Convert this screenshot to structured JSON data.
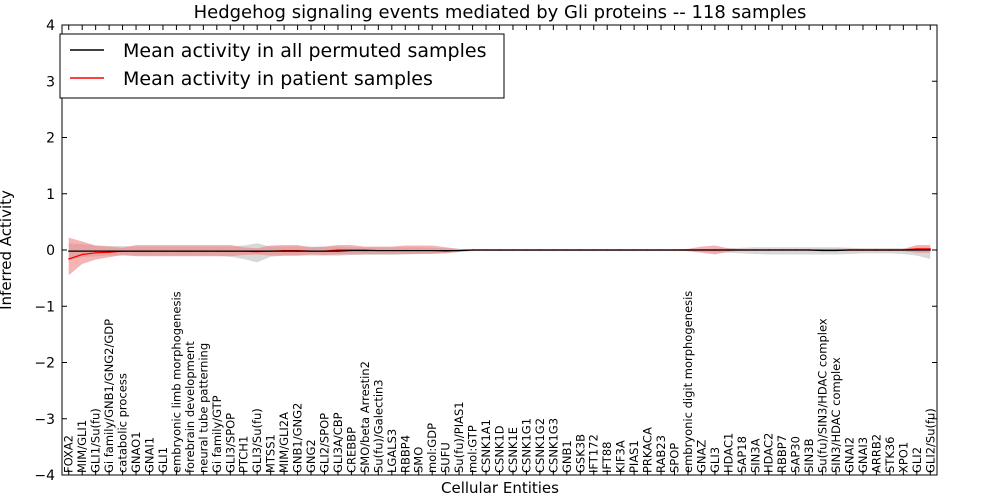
{
  "chart_data": {
    "type": "line",
    "title": "Hedgehog signaling events mediated by Gli proteins -- 118 samples",
    "xlabel": "Cellular Entities",
    "ylabel": "Inferred Activity",
    "ylim": [
      -4,
      4
    ],
    "yticks": [
      "−4",
      "−3",
      "−2",
      "−1",
      "0",
      "1",
      "2",
      "3",
      "4"
    ],
    "legend_position": "top-left",
    "grid": false,
    "categories": [
      "FOXA2",
      "MIM/GLI1",
      "GLI1/Su(fu)",
      "Gi family/GNB1/GNG2/GDP",
      "catabolic process",
      "GNAO1",
      "GNAI1",
      "GLI1",
      "embryonic limb morphogenesis",
      "forebrain development",
      "neural tube patterning",
      "Gi family/GTP",
      "GLI3/SPOP",
      "PTCH1",
      "GLI3/Su(fu)",
      "MTSS1",
      "MIM/GLI2A",
      "GNB1/GNG2",
      "GNG2",
      "GLI2/SPOP",
      "GLI3A/CBP",
      "CREBBP",
      "SMO/beta Arrestin2",
      "Su(fu)/Galectin3",
      "LGALS3",
      "RBBP4",
      "SMO",
      "mol:GDP",
      "SUFU",
      "Su(fu)/PIAS1",
      "mol:GTP",
      "CSNK1A1",
      "CSNK1D",
      "CSNK1E",
      "CSNK1G1",
      "CSNK1G2",
      "CSNK1G3",
      "GNB1",
      "GSK3B",
      "IFT172",
      "IFT88",
      "KIF3A",
      "PIAS1",
      "PRKACA",
      "RAB23",
      "SPOP",
      "embryonic digit morphogenesis",
      "GNAZ",
      "GLI3",
      "HDAC1",
      "SAP18",
      "SIN3A",
      "HDAC2",
      "RBBP7",
      "SAP30",
      "SIN3B",
      "Su(fu)/SIN3/HDAC complex",
      "SIN3/HDAC complex",
      "GNAI2",
      "GNAI3",
      "ARRB2",
      "STK36",
      "XPO1",
      "GLI2",
      "GLI2/Su(fu)"
    ],
    "series": [
      {
        "name": "Mean activity in all permuted samples",
        "color": "#000000",
        "band_color": "#c8c8c8",
        "values": [
          -0.02,
          -0.02,
          -0.02,
          -0.02,
          -0.02,
          -0.02,
          -0.02,
          -0.02,
          -0.02,
          -0.02,
          -0.02,
          -0.02,
          -0.02,
          -0.02,
          -0.02,
          -0.02,
          -0.02,
          -0.02,
          -0.02,
          -0.02,
          -0.02,
          -0.01,
          -0.01,
          -0.01,
          -0.01,
          -0.01,
          -0.01,
          -0.01,
          -0.01,
          -0.01,
          0,
          0,
          0,
          0,
          0,
          0,
          0,
          0,
          0,
          0,
          0,
          0,
          0,
          0,
          0,
          0,
          0,
          0,
          0,
          0,
          0,
          0,
          0,
          0,
          0,
          0,
          -0.01,
          -0.01,
          0,
          0,
          0,
          0,
          0,
          0,
          0
        ],
        "upper": [
          0.12,
          0.1,
          0.08,
          0.07,
          0.07,
          0.06,
          0.06,
          0.06,
          0.06,
          0.06,
          0.06,
          0.06,
          0.06,
          0.08,
          0.12,
          0.06,
          0.06,
          0.06,
          0.06,
          0.06,
          0.06,
          0.05,
          0.05,
          0.05,
          0.05,
          0.05,
          0.05,
          0.04,
          0.03,
          0.02,
          0.01,
          0.01,
          0.01,
          0.01,
          0.01,
          0.01,
          0.01,
          0.01,
          0.01,
          0.01,
          0.01,
          0.01,
          0.01,
          0.01,
          0.01,
          0.01,
          0.01,
          0.01,
          0.02,
          0.03,
          0.04,
          0.05,
          0.05,
          0.05,
          0.05,
          0.05,
          0.05,
          0.05,
          0.04,
          0.03,
          0.03,
          0.03,
          0.03,
          0.04,
          0.05
        ],
        "lower": [
          -0.18,
          -0.13,
          -0.11,
          -0.1,
          -0.1,
          -0.1,
          -0.1,
          -0.1,
          -0.1,
          -0.1,
          -0.1,
          -0.1,
          -0.12,
          -0.16,
          -0.22,
          -0.12,
          -0.1,
          -0.1,
          -0.1,
          -0.1,
          -0.1,
          -0.09,
          -0.09,
          -0.09,
          -0.09,
          -0.08,
          -0.07,
          -0.06,
          -0.05,
          -0.04,
          -0.02,
          -0.02,
          -0.02,
          -0.02,
          -0.02,
          -0.02,
          -0.02,
          -0.02,
          -0.02,
          -0.02,
          -0.02,
          -0.02,
          -0.02,
          -0.02,
          -0.02,
          -0.02,
          -0.02,
          -0.03,
          -0.04,
          -0.05,
          -0.06,
          -0.07,
          -0.08,
          -0.08,
          -0.08,
          -0.08,
          -0.08,
          -0.08,
          -0.07,
          -0.06,
          -0.06,
          -0.06,
          -0.07,
          -0.1,
          -0.16
        ]
      },
      {
        "name": "Mean activity in patient samples",
        "color": "#ff0000",
        "band_color": "#f08080",
        "values": [
          -0.16,
          -0.08,
          -0.05,
          -0.04,
          -0.02,
          -0.02,
          -0.02,
          -0.02,
          -0.02,
          -0.02,
          -0.02,
          -0.02,
          -0.02,
          -0.02,
          -0.03,
          -0.02,
          -0.01,
          -0.01,
          -0.02,
          -0.02,
          0,
          0,
          0,
          -0.01,
          -0.01,
          -0.01,
          -0.01,
          -0.01,
          -0.02,
          -0.01,
          0,
          0,
          0,
          0,
          0,
          0,
          0,
          0,
          0,
          0,
          0,
          0,
          0,
          0,
          0,
          0,
          0,
          0,
          0,
          0,
          0,
          0,
          0,
          0,
          0,
          0,
          0,
          0,
          0,
          0,
          0,
          0,
          0,
          0.02,
          0.02
        ],
        "upper": [
          0.22,
          0.15,
          0.08,
          0.06,
          0.04,
          0.09,
          0.09,
          0.09,
          0.09,
          0.09,
          0.09,
          0.09,
          0.09,
          0.05,
          0.03,
          0.08,
          0.09,
          0.09,
          0.05,
          0.06,
          0.09,
          0.09,
          0.06,
          0.06,
          0.06,
          0.08,
          0.08,
          0.08,
          0.05,
          0.02,
          0.01,
          0.01,
          0.01,
          0.01,
          0.01,
          0.01,
          0.01,
          0.01,
          0.01,
          0.01,
          0.01,
          0.01,
          0.01,
          0.01,
          0.01,
          0.01,
          0.02,
          0.06,
          0.08,
          0.03,
          0.01,
          0.01,
          0.01,
          0.01,
          0.01,
          0.01,
          0.02,
          0.02,
          0.02,
          0.02,
          0.02,
          0.02,
          0.02,
          0.09,
          0.09
        ],
        "lower": [
          -0.45,
          -0.25,
          -0.17,
          -0.13,
          -0.09,
          -0.11,
          -0.11,
          -0.11,
          -0.11,
          -0.11,
          -0.11,
          -0.11,
          -0.11,
          -0.09,
          -0.08,
          -0.1,
          -0.1,
          -0.1,
          -0.08,
          -0.09,
          -0.08,
          -0.08,
          -0.07,
          -0.07,
          -0.07,
          -0.07,
          -0.07,
          -0.07,
          -0.06,
          -0.03,
          -0.01,
          -0.01,
          -0.01,
          -0.01,
          -0.01,
          -0.01,
          -0.01,
          -0.01,
          -0.01,
          -0.01,
          -0.01,
          -0.01,
          -0.01,
          -0.01,
          -0.01,
          -0.01,
          -0.02,
          -0.05,
          -0.08,
          -0.03,
          -0.01,
          -0.01,
          -0.01,
          -0.01,
          -0.01,
          -0.01,
          -0.02,
          -0.02,
          -0.02,
          -0.02,
          -0.02,
          -0.02,
          -0.02,
          -0.05,
          -0.05
        ]
      }
    ]
  }
}
